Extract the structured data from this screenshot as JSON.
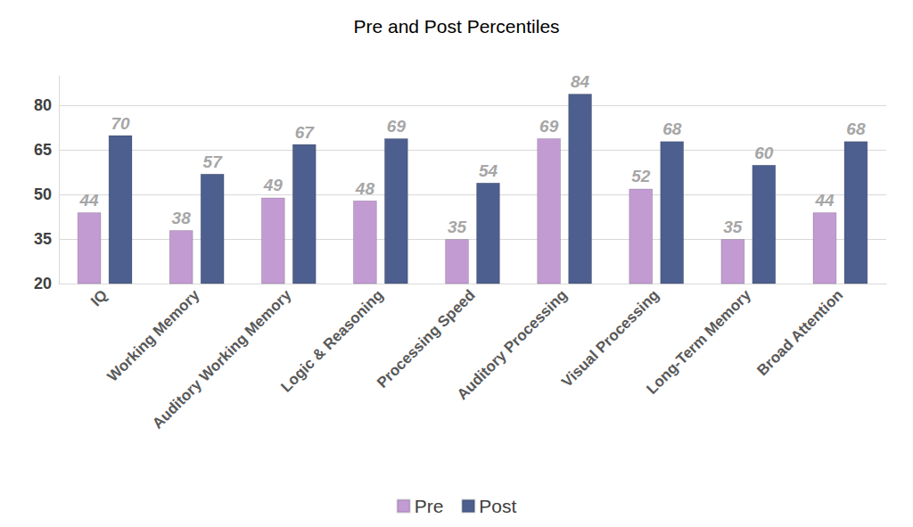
{
  "chart_data": {
    "type": "bar",
    "title": "Pre and Post Percentiles",
    "categories": [
      "IQ",
      "Working Memory",
      "Auditory Working Memory",
      "Logic & Reasoning",
      "Processing Speed",
      "Auditory Processing",
      "Visual Processing",
      "Long-Term Memory",
      "Broad Attention"
    ],
    "series": [
      {
        "name": "Pre",
        "color": "#c39bd3",
        "values": [
          44,
          38,
          49,
          48,
          35,
          69,
          52,
          35,
          44
        ]
      },
      {
        "name": "Post",
        "color": "#4d5f8e",
        "values": [
          70,
          57,
          67,
          69,
          54,
          84,
          68,
          60,
          68
        ]
      }
    ],
    "ylim": [
      20,
      90
    ],
    "yticks": [
      20,
      35,
      50,
      65,
      80
    ],
    "grid": true,
    "legend": "bottom",
    "data_labels": true
  }
}
